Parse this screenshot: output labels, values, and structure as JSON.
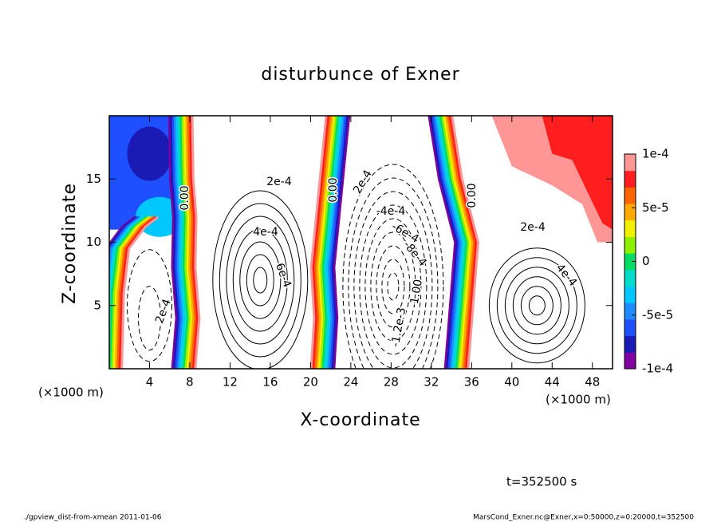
{
  "chart_data": {
    "type": "contour",
    "title": "disturbunce of Exner",
    "x_label": "X-coordinate",
    "y_label": "Z-coordinate",
    "x_unit": "(×1000 m)",
    "xlim": [
      0,
      50
    ],
    "xticks": [
      4,
      8,
      12,
      16,
      20,
      24,
      28,
      32,
      36,
      40,
      44,
      48
    ],
    "ylim": [
      0,
      20
    ],
    "yticks": [
      5,
      10,
      15
    ],
    "clim": [
      -0.0001,
      0.0001
    ],
    "cticks": [
      {
        "value": 0.0001,
        "label": "1e-4"
      },
      {
        "value": 5e-05,
        "label": "5e-5"
      },
      0,
      {
        "value": -5e-05,
        "label": "-5e-5"
      },
      {
        "value": -0.0001,
        "label": "-1e-4"
      }
    ],
    "colors": [
      "#8000a0",
      "#1a1ab4",
      "#1e50ff",
      "#1e8cff",
      "#00c8ff",
      "#00dcc8",
      "#00dc64",
      "#8cf000",
      "#f0f000",
      "#ffaa00",
      "#ff6400",
      "#ff1e1e",
      "#ff9696"
    ],
    "contour_labels": [
      "0.00",
      "0.00",
      "0.00",
      "2e-4",
      "4e-4",
      "6e-4",
      "2e-4",
      "-4e-4",
      "-6e-4",
      "-8e-4",
      "-1.2e-3",
      "-1.00",
      "2e-4",
      "4e-4",
      "2e-4"
    ],
    "time_label": "t=352500 s",
    "footer_left": "./gpview_dist-from-xmean  2011-01-06",
    "footer_right": "MarsCond_Exner.nc@Exner,x=0:50000,z=0:20000,t=352500"
  }
}
